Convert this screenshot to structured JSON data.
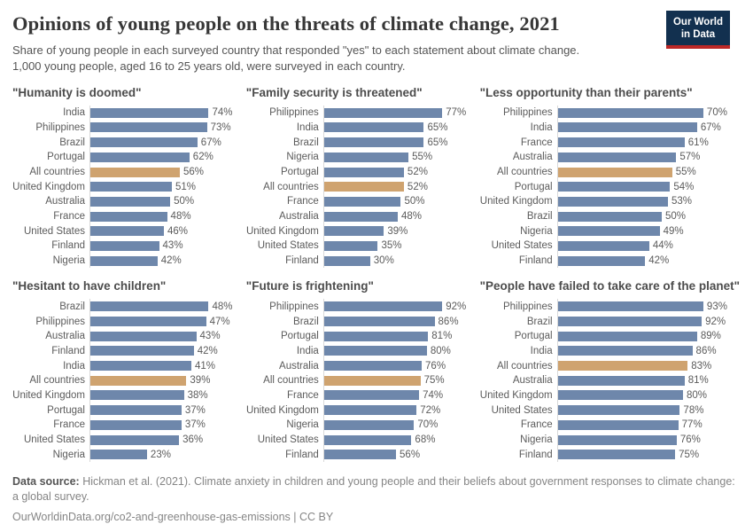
{
  "header": {
    "title": "Opinions of young people on the threats of climate change, 2021",
    "subtitle": "Share of young people in each surveyed country that responded \"yes\" to each statement about climate change. 1,000 young people, aged 16 to 25 years old, were surveyed in each country.",
    "logo": {
      "line1": "Our World",
      "line2": "in Data"
    }
  },
  "colors": {
    "bar_default": "#6e87ab",
    "bar_highlight": "#cfa36f",
    "logo_bg": "#12304f",
    "logo_stripe": "#bc2726",
    "axis_line": "#d9d9d9"
  },
  "chart_data": [
    {
      "type": "bar",
      "title": "\"Humanity is doomed\"",
      "unit": "%",
      "xlim": [
        0,
        74
      ],
      "highlight_category": "All countries",
      "categories": [
        "India",
        "Philippines",
        "Brazil",
        "Portugal",
        "All countries",
        "United Kingdom",
        "Australia",
        "France",
        "United States",
        "Finland",
        "Nigeria"
      ],
      "values": [
        74,
        73,
        67,
        62,
        56,
        51,
        50,
        48,
        46,
        43,
        42
      ]
    },
    {
      "type": "bar",
      "title": "\"Family security is threatened\"",
      "unit": "%",
      "xlim": [
        0,
        77
      ],
      "highlight_category": "All countries",
      "categories": [
        "Philippines",
        "India",
        "Brazil",
        "Nigeria",
        "Portugal",
        "All countries",
        "France",
        "Australia",
        "United Kingdom",
        "United States",
        "Finland"
      ],
      "values": [
        77,
        65,
        65,
        55,
        52,
        52,
        50,
        48,
        39,
        35,
        30
      ]
    },
    {
      "type": "bar",
      "title": "\"Less opportunity than their parents\"",
      "unit": "%",
      "xlim": [
        0,
        70
      ],
      "highlight_category": "All countries",
      "categories": [
        "Philippines",
        "India",
        "France",
        "Australia",
        "All countries",
        "Portugal",
        "United Kingdom",
        "Brazil",
        "Nigeria",
        "United States",
        "Finland"
      ],
      "values": [
        70,
        67,
        61,
        57,
        55,
        54,
        53,
        50,
        49,
        44,
        42
      ]
    },
    {
      "type": "bar",
      "title": "\"Hesitant to have children\"",
      "unit": "%",
      "xlim": [
        0,
        48
      ],
      "highlight_category": "All countries",
      "categories": [
        "Brazil",
        "Philippines",
        "Australia",
        "Finland",
        "India",
        "All countries",
        "United Kingdom",
        "Portugal",
        "France",
        "United States",
        "Nigeria"
      ],
      "values": [
        48,
        47,
        43,
        42,
        41,
        39,
        38,
        37,
        37,
        36,
        23
      ]
    },
    {
      "type": "bar",
      "title": "\"Future is frightening\"",
      "unit": "%",
      "xlim": [
        0,
        92
      ],
      "highlight_category": "All countries",
      "categories": [
        "Philippines",
        "Brazil",
        "Portugal",
        "India",
        "Australia",
        "All countries",
        "France",
        "United Kingdom",
        "Nigeria",
        "United States",
        "Finland"
      ],
      "values": [
        92,
        86,
        81,
        80,
        76,
        75,
        74,
        72,
        70,
        68,
        56
      ]
    },
    {
      "type": "bar",
      "title": "\"People have failed to take care of the planet\"",
      "unit": "%",
      "xlim": [
        0,
        93
      ],
      "highlight_category": "All countries",
      "categories": [
        "Philippines",
        "Brazil",
        "Portugal",
        "India",
        "All countries",
        "Australia",
        "United Kingdom",
        "United States",
        "France",
        "Nigeria",
        "Finland"
      ],
      "values": [
        93,
        92,
        89,
        86,
        83,
        81,
        80,
        78,
        77,
        76,
        75
      ]
    }
  ],
  "footer": {
    "source_label": "Data source:",
    "source_text": " Hickman et al. (2021). Climate anxiety in children and young people and their beliefs about government responses to climate change: a global survey.",
    "link_line": "OurWorldinData.org/co2-and-greenhouse-gas-emissions | CC BY"
  }
}
